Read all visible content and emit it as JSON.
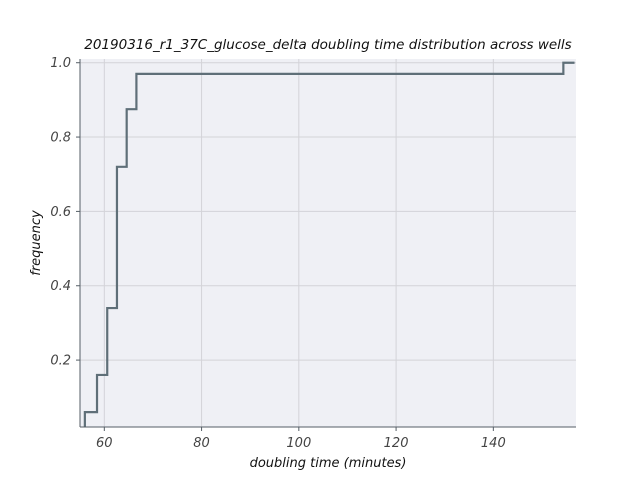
{
  "chart_data": {
    "type": "line",
    "drawstyle": "steps-post",
    "title": "20190316_r1_37C_glucose_delta doubling time distribution across wells",
    "xlabel": "doubling time (minutes)",
    "ylabel": "frequency",
    "xlim": [
      55,
      157
    ],
    "ylim": [
      0.02,
      1.01
    ],
    "xticks": [
      60,
      80,
      100,
      120,
      140
    ],
    "xtick_labels": [
      "60",
      "80",
      "100",
      "120",
      "140"
    ],
    "yticks": [
      0.2,
      0.4,
      0.6,
      0.8,
      1.0
    ],
    "ytick_labels": [
      "0.2",
      "0.4",
      "0.6",
      "0.8",
      "1.0"
    ],
    "grid": true,
    "series": [
      {
        "x": [
          56.0,
          56.0,
          58.5,
          60.6,
          62.6,
          64.6,
          66.6,
          154.4,
          156.7
        ],
        "y": [
          0.02,
          0.06,
          0.16,
          0.34,
          0.72,
          0.875,
          0.97,
          1.0,
          1.0
        ]
      }
    ],
    "colors": {
      "line": "#5f6f78",
      "plot_background": "#eff0f5",
      "grid": "#d3d3d8",
      "axis": "#555e66"
    }
  }
}
